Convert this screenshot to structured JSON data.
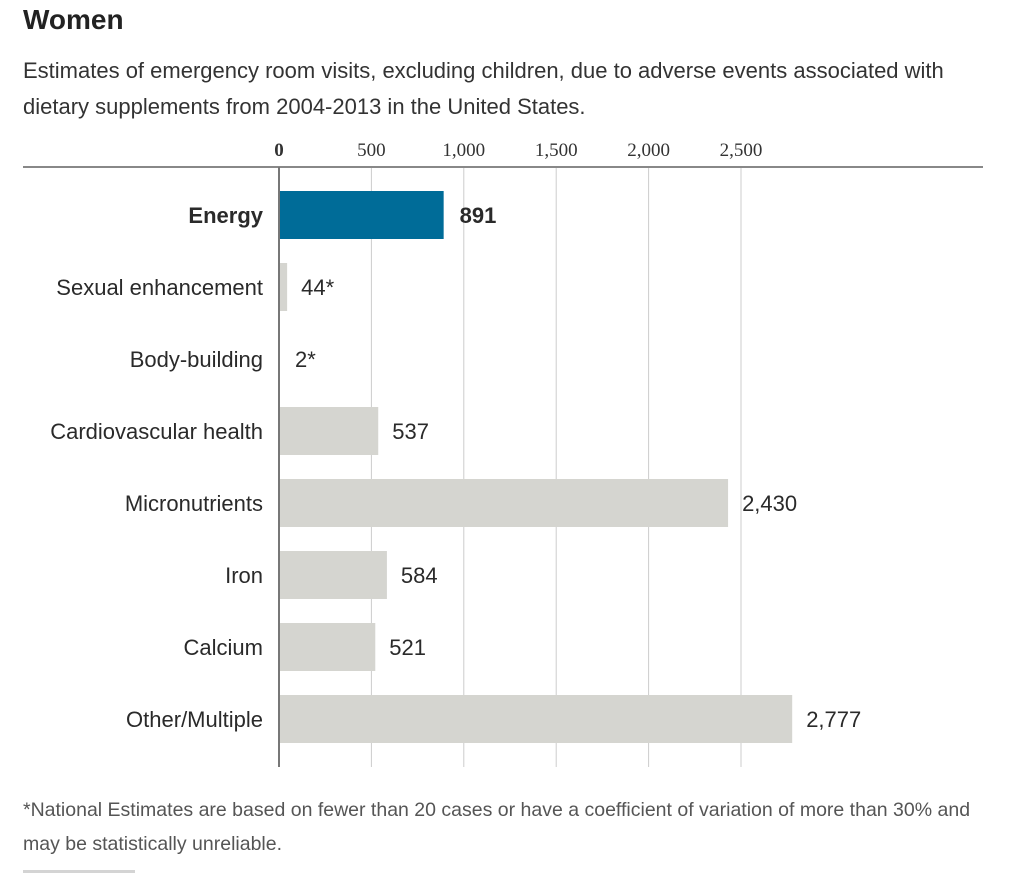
{
  "colors": {
    "highlight_bar": "#006c98",
    "default_bar": "#d5d5d0",
    "grid": "#cccccc",
    "axis": "#888888",
    "text": "#2a2a2a"
  },
  "chart_data": {
    "type": "bar",
    "orientation": "horizontal",
    "title": "Women",
    "subtitle": "Estimates of emergency room visits, excluding children, due to adverse events associated with dietary supplements from 2004-2013 in the United States.",
    "xlabel": "",
    "ylabel": "",
    "xlim": [
      0,
      3000
    ],
    "ticks": [
      0,
      500,
      1000,
      1500,
      2000,
      2500
    ],
    "tick_labels": [
      "0",
      "500",
      "1,000",
      "1,500",
      "2,000",
      "2,500"
    ],
    "grid": true,
    "categories": [
      "Energy",
      "Sexual enhancement",
      "Body-building",
      "Cardiovascular health",
      "Micronutrients",
      "Iron",
      "Calcium",
      "Other/Multiple"
    ],
    "values": [
      891,
      44,
      2,
      537,
      2430,
      584,
      521,
      2777
    ],
    "value_labels": [
      "891",
      "44*",
      "2*",
      "537",
      "2,430",
      "584",
      "521",
      "2,777"
    ],
    "highlighted": [
      "Energy"
    ],
    "footnote": "*National Estimates are based on fewer than 20 cases or have a coefficient of variation of more than 30% and may be statistically unreliable."
  }
}
